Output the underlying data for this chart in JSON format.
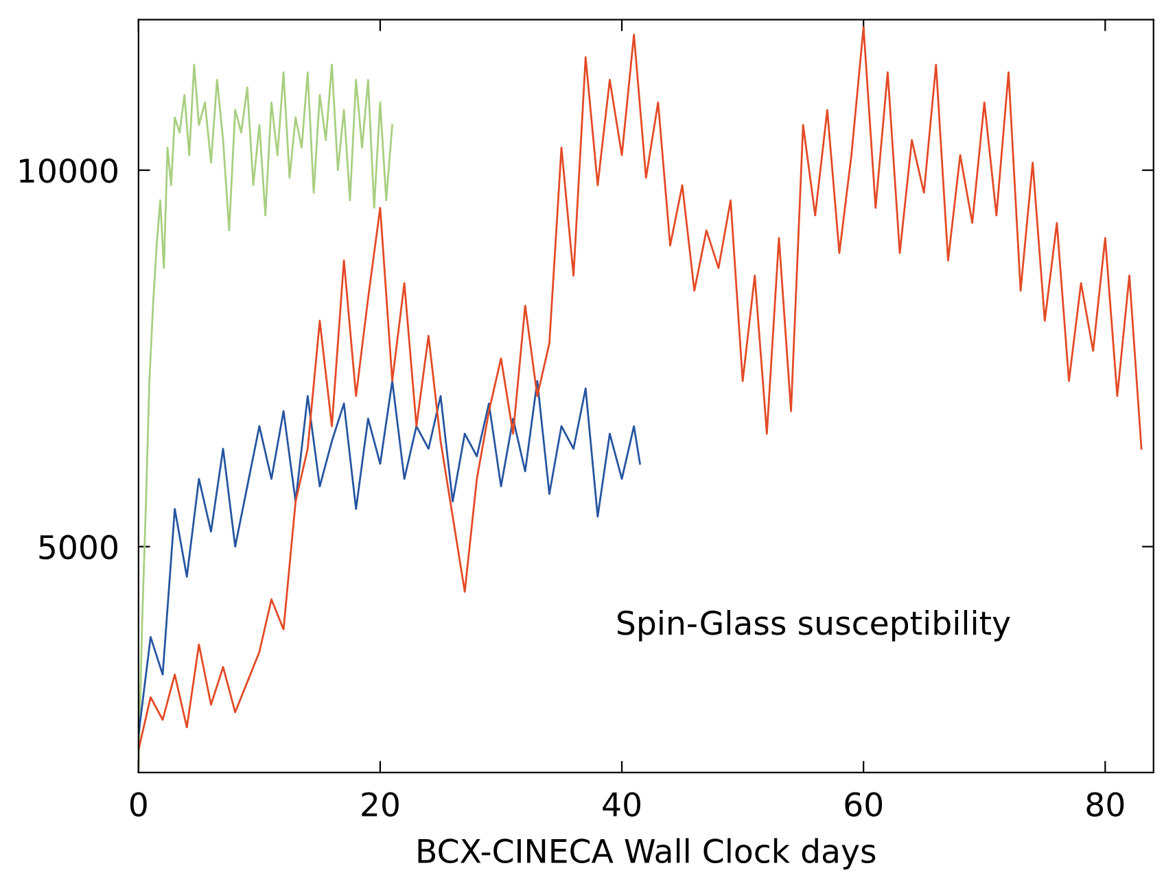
{
  "chart_data": {
    "type": "line",
    "xlabel": "BCX-CINECA Wall Clock days",
    "annotations": [
      "Spin-Glass susceptibility"
    ],
    "xlim": [
      0,
      84
    ],
    "ylim": [
      2000,
      12000
    ],
    "xticks": [
      0,
      20,
      40,
      60,
      80
    ],
    "yticks": [
      5000,
      10000
    ],
    "grid": false,
    "marker": "none",
    "line_style": "solid",
    "series": [
      {
        "color": "#a8cf80",
        "x": [
          0,
          0.3,
          0.6,
          0.9,
          1.2,
          1.5,
          1.8,
          2.1,
          2.4,
          2.7,
          3.0,
          3.4,
          3.8,
          4.2,
          4.6,
          5,
          5.5,
          6,
          6.5,
          7,
          7.5,
          8,
          8.5,
          9,
          9.5,
          10,
          10.5,
          11,
          11.5,
          12,
          12.5,
          13,
          13.5,
          14,
          14.5,
          15,
          15.5,
          16,
          16.5,
          17,
          17.5,
          18,
          18.5,
          19,
          19.5,
          20,
          20.5,
          21
        ],
        "values": [
          2000,
          4000,
          5500,
          7200,
          8200,
          9000,
          9600,
          8700,
          10300,
          9800,
          10700,
          10500,
          11000,
          10200,
          11400,
          10600,
          10900,
          10100,
          11200,
          10400,
          9200,
          10800,
          10500,
          11100,
          9800,
          10600,
          9400,
          10900,
          10200,
          11300,
          9900,
          10700,
          10300,
          11300,
          9700,
          11000,
          10400,
          11400,
          10000,
          10800,
          9600,
          11200,
          10300,
          11200,
          9500,
          10900,
          9600,
          10600
        ]
      },
      {
        "color": "#2655a0",
        "x": [
          0,
          1,
          2,
          3,
          4,
          5,
          6,
          7,
          8,
          9,
          10,
          11,
          12,
          13,
          14,
          15,
          16,
          17,
          18,
          19,
          20,
          21,
          22,
          23,
          24,
          25,
          26,
          27,
          28,
          29,
          30,
          31,
          32,
          33,
          34,
          35,
          36,
          37,
          38,
          39,
          40,
          41,
          41.5
        ],
        "values": [
          2500,
          3800,
          3300,
          5500,
          4600,
          5900,
          5200,
          6300,
          5000,
          5800,
          6600,
          5900,
          6800,
          5600,
          7000,
          5800,
          6400,
          6900,
          5500,
          6700,
          6100,
          7200,
          5900,
          6600,
          6300,
          7000,
          5600,
          6500,
          6200,
          6900,
          5800,
          6700,
          6000,
          7200,
          5700,
          6600,
          6300,
          7100,
          5400,
          6500,
          5900,
          6600,
          6100
        ]
      },
      {
        "color": "#e34a26",
        "x": [
          0,
          1,
          2,
          3,
          4,
          5,
          6,
          7,
          8,
          9,
          10,
          11,
          12,
          13,
          14,
          15,
          16,
          17,
          18,
          19,
          20,
          21,
          22,
          23,
          24,
          25,
          26,
          27,
          28,
          29,
          30,
          31,
          32,
          33,
          34,
          35,
          36,
          37,
          38,
          39,
          40,
          41,
          42,
          43,
          44,
          45,
          46,
          47,
          48,
          49,
          50,
          51,
          52,
          53,
          54,
          55,
          56,
          57,
          58,
          59,
          60,
          61,
          62,
          63,
          64,
          65,
          66,
          67,
          68,
          69,
          70,
          71,
          72,
          73,
          74,
          75,
          76,
          77,
          78,
          79,
          80,
          81,
          82,
          83
        ],
        "values": [
          2300,
          3000,
          2700,
          3300,
          2600,
          3700,
          2900,
          3400,
          2800,
          3200,
          3600,
          4300,
          3900,
          5600,
          6300,
          8000,
          6600,
          8800,
          7000,
          8300,
          9500,
          7200,
          8500,
          6600,
          7800,
          6400,
          5400,
          4400,
          5900,
          6800,
          7500,
          6500,
          8200,
          7000,
          7700,
          10300,
          8600,
          11500,
          9800,
          11200,
          10200,
          11800,
          9900,
          10900,
          9000,
          9800,
          8400,
          9200,
          8700,
          9600,
          7200,
          8600,
          6500,
          9100,
          6800,
          10600,
          9400,
          10800,
          8900,
          10200,
          11900,
          9500,
          11300,
          8900,
          10400,
          9700,
          11400,
          8800,
          10200,
          9300,
          10900,
          9400,
          11300,
          8400,
          10100,
          8000,
          9300,
          7200,
          8500,
          7600,
          9100,
          7000,
          8600,
          6300
        ]
      }
    ]
  }
}
